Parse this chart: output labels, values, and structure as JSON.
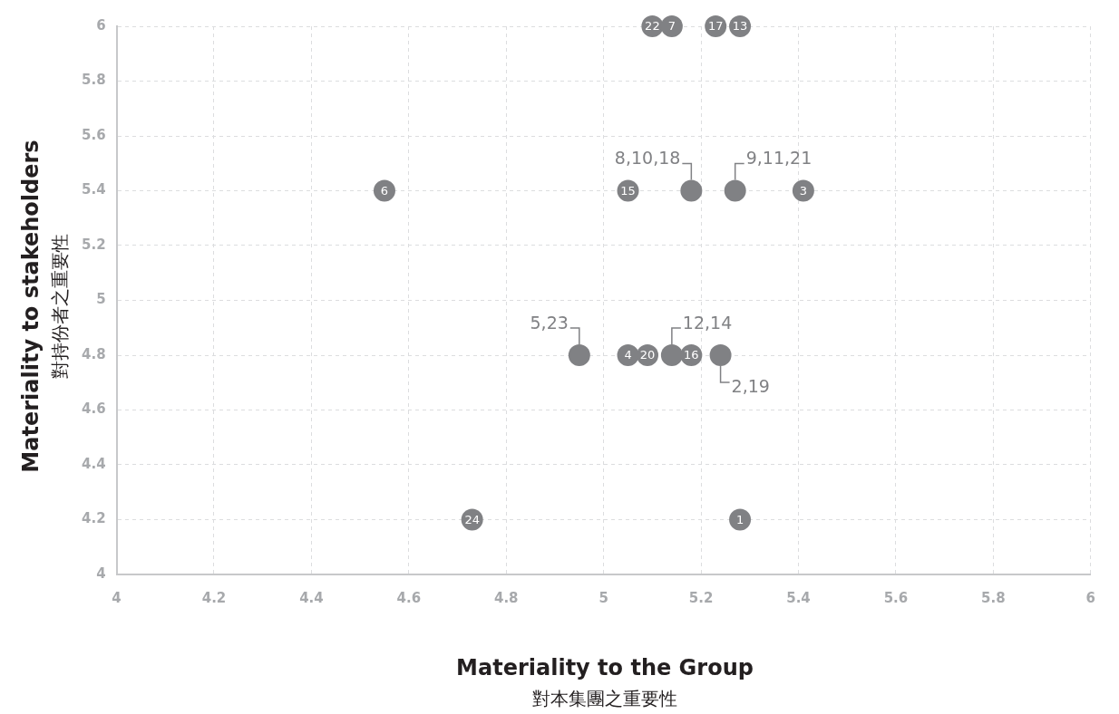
{
  "chart_data": {
    "type": "scatter",
    "xlabel": "Materiality to the Group\n對本集團之重要性",
    "ylabel": "Materiality to stakeholders\n對持份者之重要性",
    "x": [
      5.1,
      5.14,
      5.23,
      5.28,
      4.55,
      5.05,
      5.18,
      5.27,
      5.41,
      4.95,
      5.05,
      5.09,
      5.14,
      5.18,
      5.24,
      4.73,
      5.28
    ],
    "series": [
      {
        "color": "#808184",
        "values": [
          6,
          6,
          6,
          6,
          5.4,
          5.4,
          5.4,
          5.4,
          5.4,
          4.8,
          4.8,
          4.8,
          4.8,
          4.8,
          4.8,
          4.2,
          4.2
        ]
      }
    ],
    "annotations": [
      {
        "text": "22",
        "x": 5.1,
        "y": 6
      },
      {
        "text": "7",
        "x": 5.14,
        "y": 6
      },
      {
        "text": "17",
        "x": 5.23,
        "y": 6
      },
      {
        "text": "13",
        "x": 5.28,
        "y": 6
      },
      {
        "text": "6",
        "x": 4.55,
        "y": 5.4
      },
      {
        "text": "15",
        "x": 5.05,
        "y": 5.4
      },
      {
        "text": "3",
        "x": 5.41,
        "y": 5.4
      },
      {
        "text": "4",
        "x": 5.05,
        "y": 4.8
      },
      {
        "text": "20",
        "x": 5.09,
        "y": 4.8
      },
      {
        "text": "16",
        "x": 5.18,
        "y": 4.8
      },
      {
        "text": "24",
        "x": 4.73,
        "y": 4.2
      },
      {
        "text": "1",
        "x": 5.28,
        "y": 4.2
      },
      {
        "text": "8,10,18",
        "x": 5.18,
        "y": 5.4
      },
      {
        "text": "9,11,21",
        "x": 5.27,
        "y": 5.4
      },
      {
        "text": "2,19",
        "x": 5.24,
        "y": 4.8
      },
      {
        "text": "5,23",
        "x": 4.95,
        "y": 4.8
      },
      {
        "text": "12,14",
        "x": 5.14,
        "y": 4.8
      }
    ],
    "xlim": [
      4,
      6
    ],
    "xticks": [
      4,
      4.2,
      4.4,
      4.6,
      4.8,
      5,
      5.2,
      5.4,
      5.6,
      5.8,
      6
    ],
    "ylim": [
      4,
      6
    ],
    "yticks": [
      4,
      4.2,
      4.4,
      4.6,
      4.8,
      5,
      5.2,
      5.4,
      5.6,
      5.8,
      6
    ],
    "grid": true,
    "marker": "circle"
  }
}
